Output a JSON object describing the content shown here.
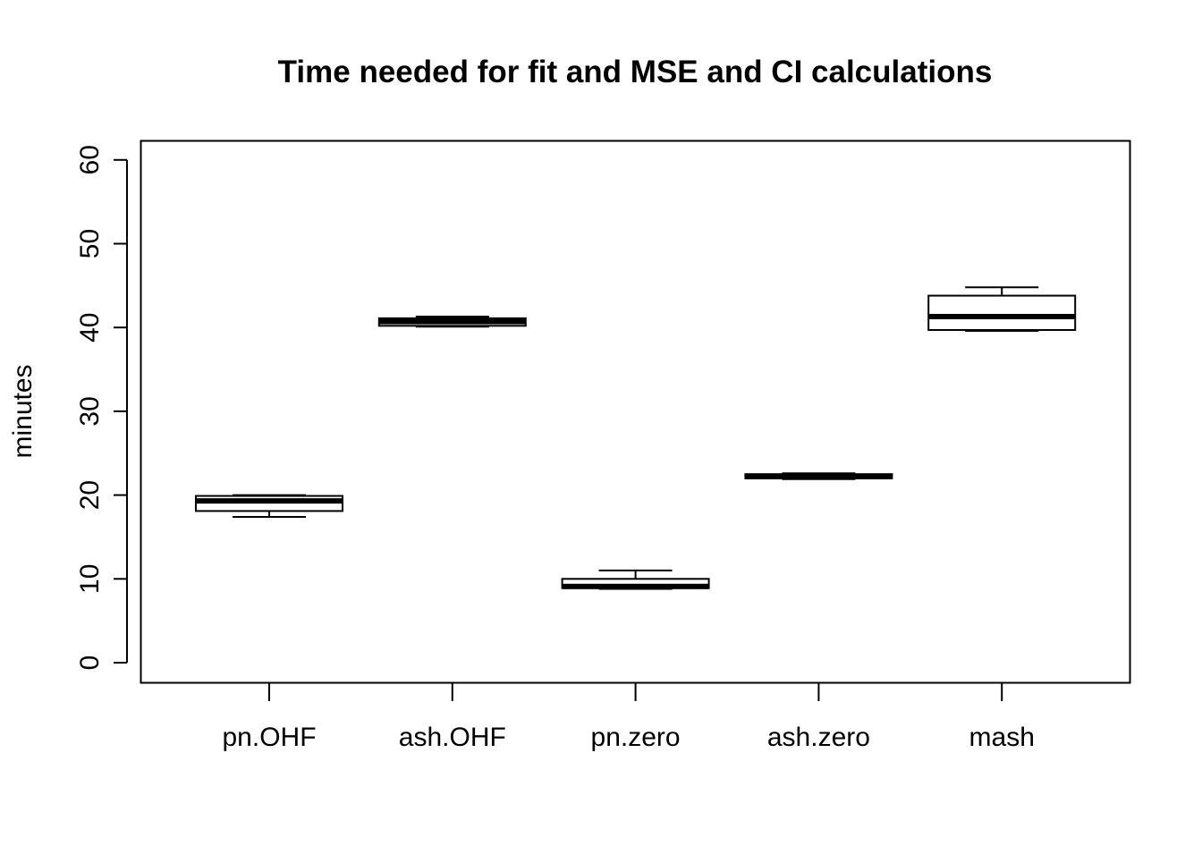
{
  "chart_data": {
    "type": "box",
    "title": "Time needed for fit and MSE and CI calculations",
    "xlabel": "",
    "ylabel": "minutes",
    "ylim": [
      0,
      60
    ],
    "yticks": [
      0,
      10,
      20,
      30,
      40,
      50,
      60
    ],
    "grid": false,
    "legend": "none",
    "categories": [
      "pn.OHF",
      "ash.OHF",
      "pn.zero",
      "ash.zero",
      "mash"
    ],
    "boxes": [
      {
        "category": "pn.OHF",
        "whisker_low": 17.4,
        "q1": 18.1,
        "median": 19.3,
        "q3": 19.9,
        "whisker_high": 20.0
      },
      {
        "category": "ash.OHF",
        "whisker_low": 40.1,
        "q1": 40.2,
        "median": 40.7,
        "q3": 41.1,
        "whisker_high": 41.3
      },
      {
        "category": "pn.zero",
        "whisker_low": 8.8,
        "q1": 8.9,
        "median": 9.1,
        "q3": 10.0,
        "whisker_high": 11.0
      },
      {
        "category": "ash.zero",
        "whisker_low": 21.9,
        "q1": 22.0,
        "median": 22.2,
        "q3": 22.5,
        "whisker_high": 22.6
      },
      {
        "category": "mash",
        "whisker_low": 39.6,
        "q1": 39.7,
        "median": 41.3,
        "q3": 43.8,
        "whisker_high": 44.8
      }
    ],
    "colors": {
      "stroke": "#000000",
      "box_fill": "#ffffff",
      "background": "#ffffff"
    }
  }
}
